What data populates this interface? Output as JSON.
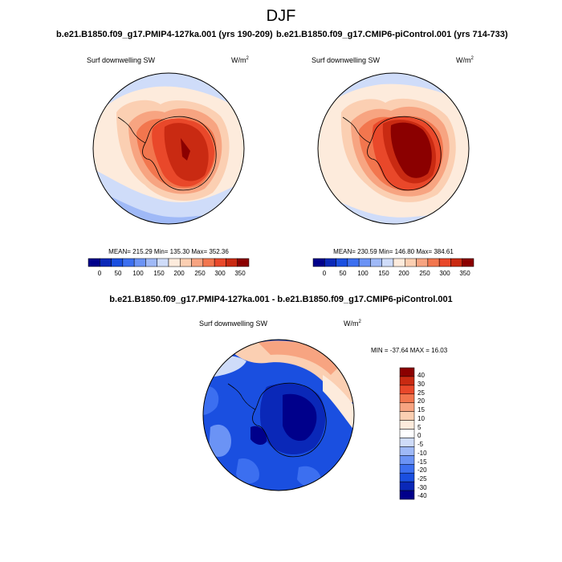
{
  "figure": {
    "title": "DJF"
  },
  "panels": [
    {
      "title": "b.e21.B1850.f09_g17.PMIP4-127ka.001 (yrs 190-209)",
      "variable": "Surf downwelling SW",
      "units": "W/m",
      "units_exp": "2",
      "stats": "MEAN= 215.29  Min= 135.30  Max= 352.36",
      "colorbar_ticks": [
        "0",
        "50",
        "100",
        "150",
        "200",
        "250",
        "300",
        "350"
      ]
    },
    {
      "title": "b.e21.B1850.f09_g17.CMIP6-piControl.001 (yrs 714-733)",
      "variable": "Surf downwelling SW",
      "units": "W/m",
      "units_exp": "2",
      "stats": "MEAN= 230.59  Min= 146.80  Max= 384.61",
      "colorbar_ticks": [
        "0",
        "50",
        "100",
        "150",
        "200",
        "250",
        "300",
        "350"
      ]
    },
    {
      "title": "b.e21.B1850.f09_g17.PMIP4-127ka.001 - b.e21.B1850.f09_g17.CMIP6-piControl.001",
      "variable": "Surf downwelling SW",
      "units": "W/m",
      "units_exp": "2",
      "stats": "MIN = -37.64 MAX =  16.03",
      "colorbar_ticks": [
        "40",
        "30",
        "25",
        "20",
        "15",
        "10",
        "5",
        "0",
        "-5",
        "-10",
        "-15",
        "-20",
        "-25",
        "-30",
        "-40"
      ]
    }
  ],
  "colors": {
    "abs_scale": [
      "#00008b",
      "#0a28b8",
      "#1a4fe0",
      "#3c6ff0",
      "#6b93f5",
      "#9fb9f7",
      "#cfdcf9",
      "#fdebdc",
      "#fbcfb2",
      "#f7a481",
      "#f2764e",
      "#e9482a",
      "#c92a12",
      "#8b0000"
    ],
    "diff_scale": [
      "#8b0000",
      "#c92a12",
      "#e9482a",
      "#f2764e",
      "#f7a481",
      "#fbcfb2",
      "#fdebdc",
      "#ffffff",
      "#cfdcf9",
      "#9fb9f7",
      "#6b93f5",
      "#3c6ff0",
      "#1a4fe0",
      "#0a28b8",
      "#00008b"
    ]
  }
}
